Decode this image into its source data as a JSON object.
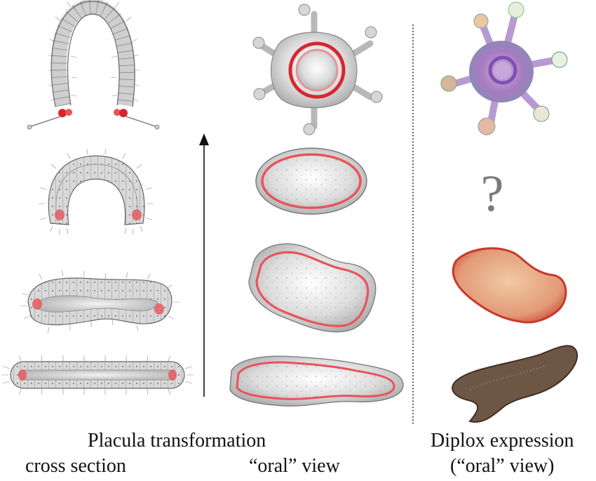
{
  "captions": {
    "transformation": "Placula transformation",
    "cross_section": "cross section",
    "oral_view": "“oral” view",
    "diplox": "Diplox expression",
    "diplox_view": "(“oral” view)"
  },
  "question_mark": "?",
  "colors": {
    "tissue_gray": "#d6d6d6",
    "outline": "#6e6e6e",
    "expression_red": "#e23a45",
    "stain_purple": "#a77bc0",
    "stain_brown": "#6e5645",
    "stain_orange": "#d9613f"
  }
}
